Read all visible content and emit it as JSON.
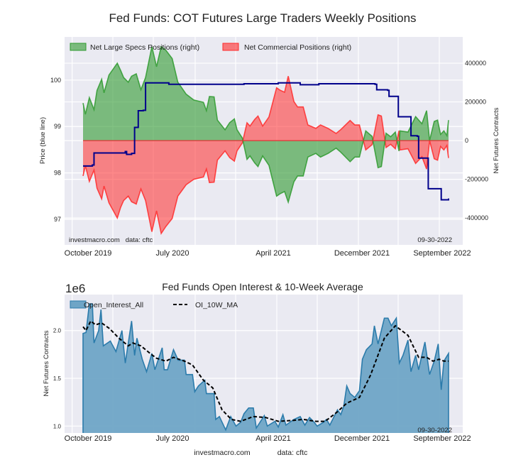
{
  "chart_data": [
    {
      "type": "area",
      "title": "Fed Funds: COT Futures Large Traders Weekly Positions",
      "ylabel_left": "Price (blue line)",
      "ylabel_right": "Net Futures Contracts",
      "ylim_left": [
        96.45,
        100.93
      ],
      "ylim_right": [
        -539000,
        536000
      ],
      "yticks_left": [
        "97",
        "98",
        "99",
        "100"
      ],
      "yticks_right": [
        "400000",
        "200000",
        "0",
        "-200000",
        "-400000"
      ],
      "xticks": [
        "October 2019",
        "July 2020",
        "April 2021",
        "December 2021",
        "September 2022"
      ],
      "xlim": [
        "2019-09-24",
        "2022-09-27"
      ],
      "grid": true,
      "legend_position": "top-left",
      "annotation_left": "investmacro.com   data: cftc",
      "annotation_right": "09-30-2022",
      "colors": {
        "specs": "#2e9a2e",
        "commercial": "#ff2a2a",
        "price": "#00008b",
        "background": "#eaeaf2"
      },
      "series": [
        {
          "name": "Net Large Specs Positions (right)",
          "axis": "right",
          "kind": "fill",
          "x": [
            "2019-09-24",
            "2019-10-01",
            "2019-10-13",
            "2019-10-27",
            "2019-11-05",
            "2019-11-19",
            "2019-11-26",
            "2019-12-11",
            "2020-01-05",
            "2020-01-15",
            "2020-01-24",
            "2020-02-07",
            "2020-02-17",
            "2020-03-02",
            "2020-03-16",
            "2020-03-30",
            "2020-04-18",
            "2020-05-02",
            "2020-05-16",
            "2020-05-30",
            "2020-06-18",
            "2020-07-05",
            "2020-07-30",
            "2020-08-22",
            "2020-09-20",
            "2020-09-29",
            "2020-10-08",
            "2020-10-22",
            "2020-11-01",
            "2020-11-24",
            "2020-12-08",
            "2020-12-22",
            "2020-12-30",
            "2021-01-15",
            "2021-01-29",
            "2021-02-07",
            "2021-02-21",
            "2021-03-03",
            "2021-03-17",
            "2021-04-05",
            "2021-04-28",
            "2021-05-08",
            "2021-05-22",
            "2021-06-02",
            "2021-06-19",
            "2021-06-30",
            "2021-07-17",
            "2021-07-31",
            "2021-08-24",
            "2021-09-07",
            "2021-09-30",
            "2021-10-24",
            "2021-11-07",
            "2021-12-05",
            "2021-12-19",
            "2022-01-02",
            "2022-01-21",
            "2022-02-09",
            "2022-02-27",
            "2022-03-09",
            "2022-03-23",
            "2022-04-06",
            "2022-04-20",
            "2022-05-01",
            "2022-05-04",
            "2022-05-28",
            "2022-06-20",
            "2022-07-09",
            "2022-07-23",
            "2022-08-01",
            "2022-08-15",
            "2022-08-25",
            "2022-09-03",
            "2022-09-13",
            "2022-09-22",
            "2022-09-27"
          ],
          "values": [
            194000,
            136000,
            222000,
            160000,
            259000,
            317000,
            247000,
            339000,
            400000,
            363000,
            326000,
            302000,
            333000,
            345000,
            263000,
            326000,
            486000,
            382000,
            486000,
            467000,
            424000,
            302000,
            240000,
            210000,
            198000,
            155000,
            228000,
            226000,
            106000,
            56000,
            93000,
            112000,
            56000,
            13000,
            -97000,
            -79000,
            -115000,
            -134000,
            -79000,
            -128000,
            -287000,
            -275000,
            -263000,
            -318000,
            -213000,
            -183000,
            -183000,
            -85000,
            -66000,
            -85000,
            -66000,
            -39000,
            -60000,
            -109000,
            -85000,
            -85000,
            50000,
            22000,
            -140000,
            -134000,
            38000,
            20000,
            44000,
            -54000,
            50000,
            44000,
            124000,
            87000,
            155000,
            0,
            99000,
            106000,
            32000,
            50000,
            26000,
            106000
          ]
        },
        {
          "name": "Net Commercial Positions (right)",
          "axis": "right",
          "kind": "fill",
          "x": [
            "2019-09-24",
            "2019-10-01",
            "2019-10-13",
            "2019-10-27",
            "2019-11-05",
            "2019-11-19",
            "2019-11-26",
            "2019-12-11",
            "2020-01-05",
            "2020-01-15",
            "2020-01-24",
            "2020-02-07",
            "2020-02-17",
            "2020-03-02",
            "2020-03-16",
            "2020-03-30",
            "2020-04-18",
            "2020-05-02",
            "2020-05-16",
            "2020-05-30",
            "2020-06-18",
            "2020-07-05",
            "2020-07-30",
            "2020-08-22",
            "2020-09-20",
            "2020-09-29",
            "2020-10-08",
            "2020-10-22",
            "2020-11-01",
            "2020-11-24",
            "2020-12-08",
            "2020-12-22",
            "2020-12-30",
            "2021-01-15",
            "2021-01-29",
            "2021-02-07",
            "2021-02-21",
            "2021-03-03",
            "2021-03-17",
            "2021-04-05",
            "2021-04-28",
            "2021-05-08",
            "2021-05-22",
            "2021-06-02",
            "2021-06-19",
            "2021-06-30",
            "2021-07-17",
            "2021-07-31",
            "2021-08-24",
            "2021-09-07",
            "2021-09-30",
            "2021-10-24",
            "2021-11-07",
            "2021-12-05",
            "2021-12-19",
            "2022-01-02",
            "2022-01-21",
            "2022-02-09",
            "2022-02-27",
            "2022-03-09",
            "2022-03-23",
            "2022-04-06",
            "2022-04-20",
            "2022-05-01",
            "2022-05-04",
            "2022-05-28",
            "2022-06-20",
            "2022-07-09",
            "2022-07-23",
            "2022-08-01",
            "2022-08-15",
            "2022-08-25",
            "2022-09-03",
            "2022-09-13",
            "2022-09-22",
            "2022-09-27"
          ],
          "values": [
            -183000,
            -130000,
            -211000,
            -152000,
            -246000,
            -301000,
            -235000,
            -322000,
            -400000,
            -345000,
            -310000,
            -287000,
            -316000,
            -328000,
            -250000,
            -310000,
            -471000,
            -363000,
            -480000,
            -444000,
            -403000,
            -287000,
            -228000,
            -200000,
            -188000,
            -147000,
            -217000,
            -215000,
            -101000,
            -53000,
            -88000,
            -106000,
            -53000,
            -12000,
            92000,
            75000,
            109000,
            127000,
            75000,
            122000,
            273000,
            261000,
            250000,
            333000,
            202000,
            174000,
            174000,
            81000,
            63000,
            81000,
            63000,
            37000,
            57000,
            104000,
            81000,
            81000,
            -48000,
            -21000,
            133000,
            127000,
            -36000,
            -19000,
            -42000,
            51000,
            -48000,
            -42000,
            -118000,
            -83000,
            -147000,
            0,
            -94000,
            -101000,
            -30000,
            -48000,
            -25000,
            -90000
          ]
        },
        {
          "name": "",
          "axis": "left",
          "kind": "step-line",
          "x": [
            "2019-09-24",
            "2019-10-22",
            "2019-10-27",
            "2020-01-29",
            "2020-02-02",
            "2020-02-17",
            "2020-02-26",
            "2020-03-08",
            "2020-03-23",
            "2020-03-30",
            "2020-06-08",
            "2021-01-20",
            "2021-05-03",
            "2021-07-08",
            "2021-09-02",
            "2022-02-18",
            "2022-02-23",
            "2022-03-28",
            "2022-04-01",
            "2022-04-25",
            "2022-04-29",
            "2022-05-28",
            "2022-06-06",
            "2022-06-25",
            "2022-06-29",
            "2022-07-18",
            "2022-07-28",
            "2022-08-25",
            "2022-09-05",
            "2022-09-27"
          ],
          "values": [
            98.15,
            98.17,
            98.43,
            98.46,
            98.4,
            98.42,
            98.98,
            99.34,
            99.35,
            99.94,
            99.91,
            99.92,
            99.94,
            99.9,
            99.92,
            99.91,
            99.79,
            99.78,
            99.65,
            99.65,
            99.21,
            99.21,
            98.8,
            98.79,
            98.32,
            98.32,
            97.66,
            97.66,
            97.42,
            97.45
          ]
        }
      ]
    },
    {
      "type": "area",
      "title": "Fed Funds Open Interest & 10-Week Average",
      "scale_label": "1e6",
      "ylabel": "Net Futures Contracts",
      "ylim": [
        0.928,
        2.377
      ],
      "yticks": [
        "1.0",
        "1.5",
        "2.0"
      ],
      "xticks": [
        "October 2019",
        "July 2020",
        "April 2021",
        "December 2021",
        "September 2022"
      ],
      "xlim": [
        "2019-09-24",
        "2022-09-27"
      ],
      "grid": true,
      "legend_position": "top-left",
      "annotation_right": "09-30-2022",
      "footer_left": "investmacro.com",
      "footer_right": "data: cftc",
      "colors": {
        "open_interest_fill": "#6fa5c6",
        "open_interest_line": "#2b7bab",
        "ma": "#000000"
      },
      "series": [
        {
          "name": "Open_Interest_All",
          "kind": "fill",
          "x": [
            "2019-09-24",
            "2019-10-03",
            "2019-10-13",
            "2019-10-22",
            "2019-10-27",
            "2019-11-10",
            "2019-11-17",
            "2019-11-24",
            "2019-12-15",
            "2020-01-01",
            "2020-01-19",
            "2020-01-29",
            "2020-02-17",
            "2020-02-26",
            "2020-03-04",
            "2020-03-20",
            "2020-04-02",
            "2020-04-18",
            "2020-04-27",
            "2020-05-19",
            "2020-05-25",
            "2020-06-04",
            "2020-06-22",
            "2020-07-06",
            "2020-07-25",
            "2020-07-30",
            "2020-08-18",
            "2020-08-25",
            "2020-09-05",
            "2020-09-24",
            "2020-09-29",
            "2020-10-22",
            "2020-10-27",
            "2020-11-07",
            "2020-11-26",
            "2020-12-11",
            "2020-12-27",
            "2021-01-10",
            "2021-01-20",
            "2021-02-03",
            "2021-02-17",
            "2021-02-26",
            "2021-03-22",
            "2021-03-31",
            "2021-04-23",
            "2021-05-03",
            "2021-05-17",
            "2021-05-26",
            "2021-06-19",
            "2021-07-08",
            "2021-07-22",
            "2021-08-05",
            "2021-08-19",
            "2021-08-28",
            "2021-09-16",
            "2021-09-25",
            "2021-10-05",
            "2021-10-28",
            "2021-11-07",
            "2021-11-16",
            "2021-11-25",
            "2021-12-05",
            "2021-12-19",
            "2022-01-02",
            "2022-01-11",
            "2022-01-23",
            "2022-02-09",
            "2022-02-16",
            "2022-02-27",
            "2022-03-18",
            "2022-03-29",
            "2022-04-08",
            "2022-04-23",
            "2022-05-02",
            "2022-05-13",
            "2022-05-28",
            "2022-06-06",
            "2022-06-20",
            "2022-06-29",
            "2022-07-18",
            "2022-08-01",
            "2022-08-15",
            "2022-08-27",
            "2022-09-05",
            "2022-09-13",
            "2022-09-27"
          ],
          "values": [
            1.97,
            1.98,
            2.28,
            2.28,
            1.87,
            2.0,
            2.22,
            1.84,
            1.89,
            1.78,
            2.0,
            1.66,
            2.1,
            1.74,
            1.92,
            1.7,
            1.57,
            1.76,
            1.59,
            1.82,
            1.59,
            1.59,
            1.8,
            1.69,
            1.69,
            1.54,
            1.54,
            1.36,
            1.42,
            1.48,
            1.34,
            1.34,
            1.07,
            1.1,
            0.96,
            1.1,
            1.0,
            1.04,
            1.13,
            1.19,
            1.19,
            0.98,
            1.11,
            1.0,
            1.05,
            0.99,
            1.12,
            1.01,
            1.07,
            1.1,
            1.01,
            1.09,
            1.04,
            1.0,
            1.04,
            1.07,
            1.01,
            1.17,
            1.12,
            1.21,
            1.42,
            1.34,
            1.3,
            1.37,
            1.7,
            1.8,
            1.86,
            2.05,
            1.86,
            2.13,
            2.13,
            2.05,
            2.13,
            1.66,
            1.74,
            1.9,
            1.57,
            1.74,
            1.59,
            1.88,
            1.54,
            1.68,
            1.86,
            1.38,
            1.68,
            1.76
          ]
        },
        {
          "name": "OI_10W_MA",
          "kind": "dashed-line",
          "x": [
            "2019-09-24",
            "2019-10-03",
            "2019-10-17",
            "2019-11-01",
            "2019-11-19",
            "2019-12-13",
            "2020-01-10",
            "2020-02-07",
            "2020-02-21",
            "2020-03-16",
            "2020-04-13",
            "2020-05-02",
            "2020-05-30",
            "2020-06-22",
            "2020-07-25",
            "2020-08-18",
            "2020-09-20",
            "2020-10-18",
            "2020-11-15",
            "2020-12-13",
            "2021-01-10",
            "2021-02-17",
            "2021-03-26",
            "2021-05-03",
            "2021-06-19",
            "2021-07-17",
            "2021-08-24",
            "2021-09-21",
            "2021-10-28",
            "2021-11-25",
            "2022-01-02",
            "2022-02-04",
            "2022-03-18",
            "2022-04-20",
            "2022-05-28",
            "2022-06-29",
            "2022-07-23",
            "2022-08-11",
            "2022-08-30",
            "2022-09-13",
            "2022-09-27"
          ],
          "values": [
            2.04,
            2.0,
            2.1,
            2.06,
            2.08,
            2.02,
            1.92,
            1.84,
            1.87,
            1.84,
            1.76,
            1.71,
            1.68,
            1.72,
            1.68,
            1.64,
            1.48,
            1.4,
            1.17,
            1.07,
            1.05,
            1.1,
            1.09,
            1.05,
            1.06,
            1.07,
            1.05,
            1.05,
            1.15,
            1.24,
            1.3,
            1.53,
            1.92,
            2.05,
            1.95,
            1.72,
            1.72,
            1.68,
            1.7,
            1.68,
            1.68
          ]
        }
      ]
    }
  ]
}
